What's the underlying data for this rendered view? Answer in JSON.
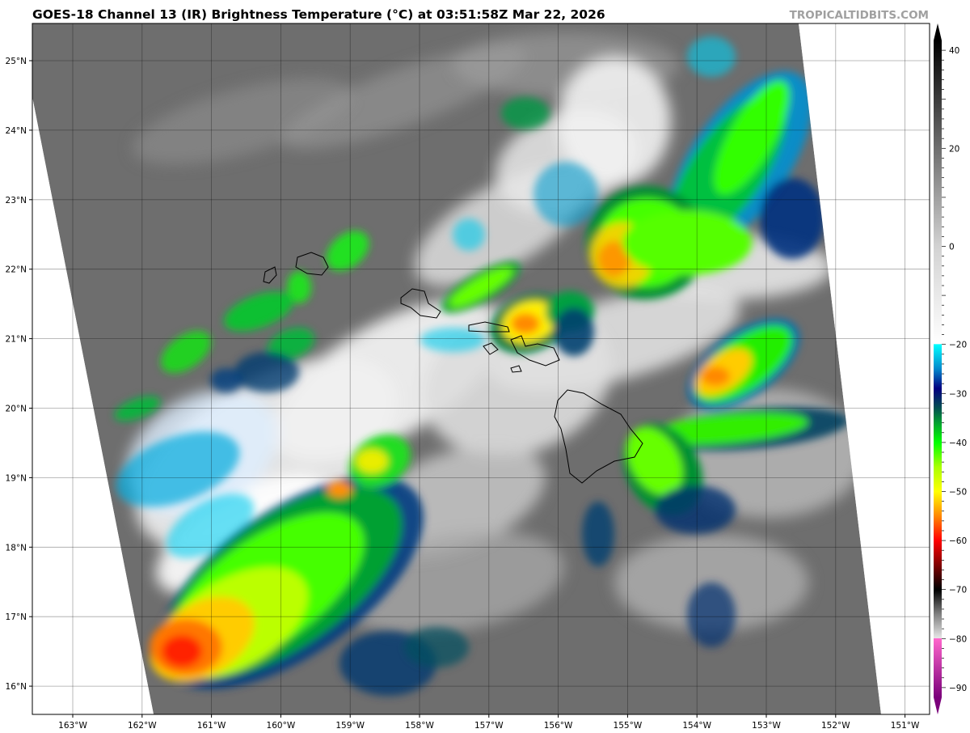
{
  "header": {
    "title": "GOES-18 Channel 13 (IR) Brightness Temperature (°C) at 03:51:58Z Mar 22, 2026",
    "credit": "TROPICALTIDBITS.COM"
  },
  "map": {
    "lon_ticks": [
      "163°W",
      "162°W",
      "161°W",
      "160°W",
      "159°W",
      "158°W",
      "157°W",
      "156°W",
      "155°W",
      "154°W",
      "153°W",
      "152°W",
      "151°W"
    ],
    "lat_ticks": [
      "25°N",
      "24°N",
      "23°N",
      "22°N",
      "21°N",
      "20°N",
      "19°N",
      "18°N",
      "17°N",
      "16°N"
    ],
    "region": "Hawaiian Islands"
  },
  "colorbar": {
    "ticks": [
      "40",
      "20",
      "0",
      "−20",
      "−30",
      "−40",
      "−50",
      "−60",
      "−70",
      "−80",
      "−90"
    ],
    "tick_values": [
      40,
      20,
      0,
      -20,
      -30,
      -40,
      -50,
      -60,
      -70,
      -80,
      -90
    ],
    "stops": [
      {
        "v": 42,
        "c": "#000000"
      },
      {
        "v": 0,
        "c": "#d2d2d2"
      },
      {
        "v": -19.9,
        "c": "#ffffff"
      },
      {
        "v": -20,
        "c": "#00ffff"
      },
      {
        "v": -25,
        "c": "#0088cc"
      },
      {
        "v": -29,
        "c": "#000080"
      },
      {
        "v": -33,
        "c": "#005050"
      },
      {
        "v": -36,
        "c": "#00a030"
      },
      {
        "v": -40,
        "c": "#00ff00"
      },
      {
        "v": -45,
        "c": "#aaff00"
      },
      {
        "v": -50,
        "c": "#ffff00"
      },
      {
        "v": -55,
        "c": "#ff8800"
      },
      {
        "v": -60,
        "c": "#ff0000"
      },
      {
        "v": -65,
        "c": "#800000"
      },
      {
        "v": -70,
        "c": "#000000"
      },
      {
        "v": -75,
        "c": "#808080"
      },
      {
        "v": -79.9,
        "c": "#e6e6e6"
      },
      {
        "v": -80,
        "c": "#ff66cc"
      },
      {
        "v": -92,
        "c": "#7a007a"
      }
    ]
  }
}
